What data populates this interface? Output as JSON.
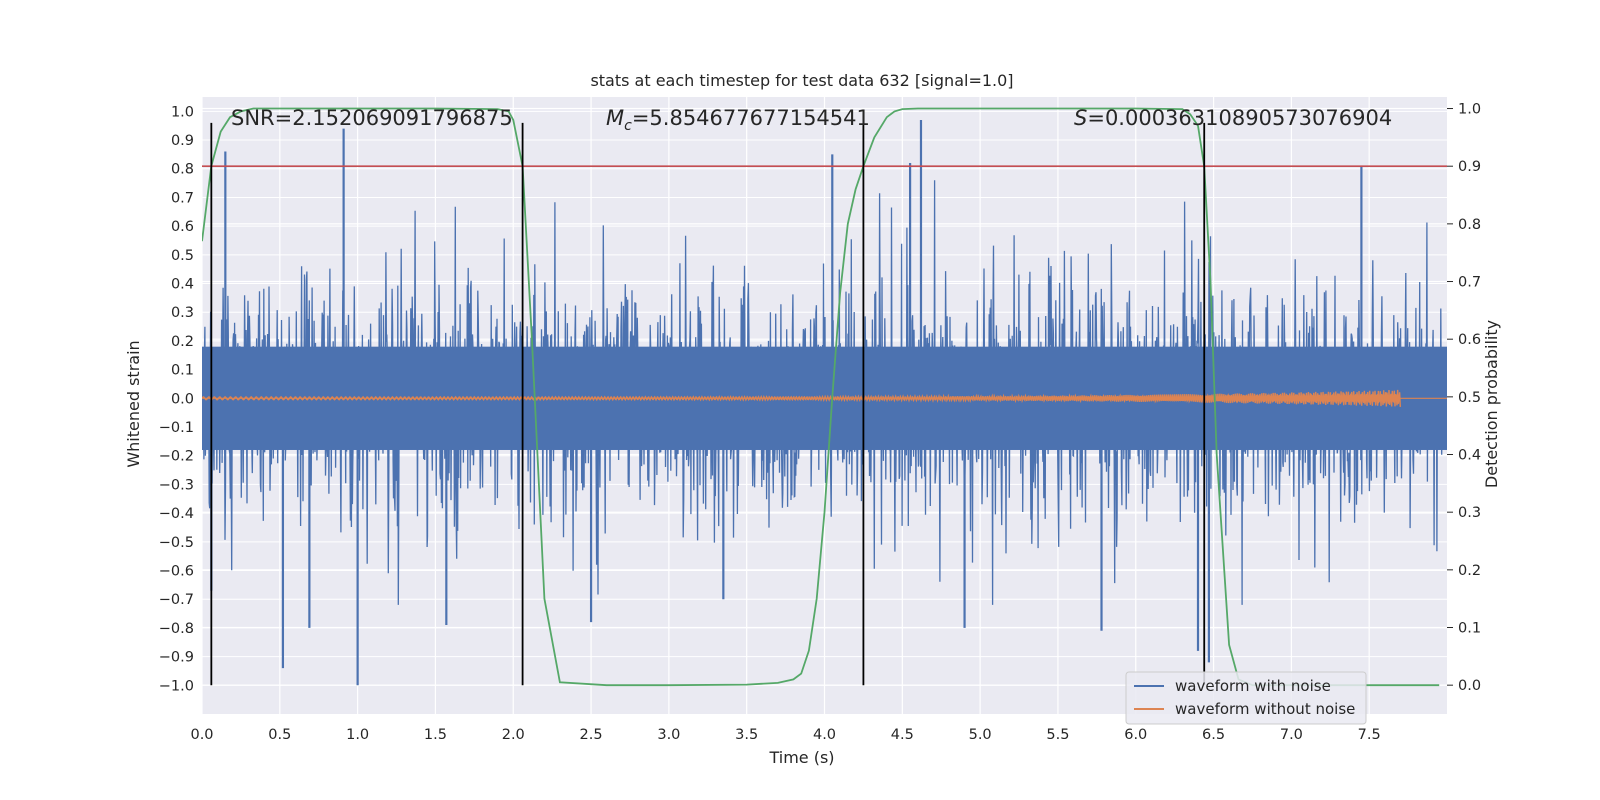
{
  "chart_data": {
    "type": "line",
    "title": "stats at each timestep for test data 632 [signal=1.0]",
    "xlabel": "Time (s)",
    "ylabel_left": "Whitened strain",
    "ylabel_right": "Detection probability",
    "xlim": [
      0,
      8.0
    ],
    "ylim_left": [
      -1.1,
      1.05
    ],
    "ylim_right": [
      -0.05,
      1.02
    ],
    "x_ticks": [
      0.0,
      0.5,
      1.0,
      1.5,
      2.0,
      2.5,
      3.0,
      3.5,
      4.0,
      4.5,
      5.0,
      5.5,
      6.0,
      6.5,
      7.0,
      7.5
    ],
    "x_tick_labels": [
      "0.0",
      "0.5",
      "1.0",
      "1.5",
      "2.0",
      "2.5",
      "3.0",
      "3.5",
      "4.0",
      "4.5",
      "5.0",
      "5.5",
      "6.0",
      "6.5",
      "7.0",
      "7.5"
    ],
    "y_left_ticks": [
      -1.0,
      -0.9,
      -0.8,
      -0.7,
      -0.6,
      -0.5,
      -0.4,
      -0.3,
      -0.2,
      -0.1,
      0.0,
      0.1,
      0.2,
      0.3,
      0.4,
      0.5,
      0.6,
      0.7,
      0.8,
      0.9,
      1.0
    ],
    "y_left_tick_labels": [
      "−1.0",
      "−0.9",
      "−0.8",
      "−0.7",
      "−0.6",
      "−0.5",
      "−0.4",
      "−0.3",
      "−0.2",
      "−0.1",
      "0.0",
      "0.1",
      "0.2",
      "0.3",
      "0.4",
      "0.5",
      "0.6",
      "0.7",
      "0.8",
      "0.9",
      "1.0"
    ],
    "y_right_ticks": [
      0.0,
      0.1,
      0.2,
      0.3,
      0.4,
      0.5,
      0.6,
      0.7,
      0.8,
      0.9,
      1.0
    ],
    "y_right_tick_labels": [
      "0.0",
      "0.1",
      "0.2",
      "0.3",
      "0.4",
      "0.5",
      "0.6",
      "0.7",
      "0.8",
      "0.9",
      "1.0"
    ],
    "threshold_right": 0.9,
    "vertical_lines_x": [
      0.06,
      2.06,
      4.25,
      6.44
    ],
    "series": [
      {
        "name": "waveform with noise",
        "color": "#4c72b0",
        "kind": "noisy-strain",
        "duration": 8.0,
        "core_amplitude": 0.18,
        "spikes": [
          {
            "x": 0.15,
            "y": 0.86
          },
          {
            "x": 0.91,
            "y": 0.94
          },
          {
            "x": 4.05,
            "y": 0.85
          },
          {
            "x": 4.62,
            "y": 0.97
          },
          {
            "x": 4.55,
            "y": 0.82
          },
          {
            "x": 7.45,
            "y": 0.81
          },
          {
            "x": 0.52,
            "y": -0.94
          },
          {
            "x": 1.0,
            "y": -1.0
          },
          {
            "x": 0.69,
            "y": -0.8
          },
          {
            "x": 1.57,
            "y": -0.79
          },
          {
            "x": 2.5,
            "y": -0.78
          },
          {
            "x": 4.9,
            "y": -0.8
          },
          {
            "x": 5.78,
            "y": -0.81
          },
          {
            "x": 6.47,
            "y": -0.92
          },
          {
            "x": 6.4,
            "y": -0.88
          },
          {
            "x": 0.06,
            "y": -0.67
          },
          {
            "x": 3.35,
            "y": -0.7
          }
        ]
      },
      {
        "name": "waveform without noise",
        "color": "#dd8452",
        "kind": "chirp",
        "t_start": 0.0,
        "t_end": 7.7,
        "base_amplitude": 0.005,
        "peak_amplitude": 0.03
      },
      {
        "name": "detection probability",
        "color": "#55a868",
        "axis": "right",
        "x": [
          0.0,
          0.06,
          0.12,
          0.18,
          0.25,
          0.33,
          0.5,
          1.0,
          1.5,
          1.9,
          1.97,
          2.0,
          2.06,
          2.12,
          2.2,
          2.3,
          2.6,
          3.0,
          3.5,
          3.7,
          3.8,
          3.85,
          3.9,
          3.95,
          4.0,
          4.05,
          4.1,
          4.15,
          4.2,
          4.25,
          4.32,
          4.4,
          4.45,
          4.5,
          4.6,
          5.0,
          5.5,
          6.0,
          6.3,
          6.35,
          6.4,
          6.44,
          6.48,
          6.52,
          6.6,
          6.66,
          6.75,
          7.0,
          7.5,
          7.95
        ],
        "y": [
          0.77,
          0.9,
          0.96,
          0.985,
          0.995,
          1.0,
          1.0,
          1.0,
          1.0,
          0.999,
          0.995,
          0.98,
          0.9,
          0.6,
          0.15,
          0.005,
          0.0,
          0.0,
          0.001,
          0.004,
          0.01,
          0.02,
          0.06,
          0.15,
          0.3,
          0.5,
          0.68,
          0.8,
          0.86,
          0.9,
          0.95,
          0.985,
          0.995,
          0.999,
          1.0,
          1.0,
          1.0,
          1.0,
          0.999,
          0.99,
          0.97,
          0.9,
          0.7,
          0.4,
          0.07,
          0.01,
          0.0,
          0.0,
          0.0,
          0.0
        ]
      }
    ],
    "annotations": [
      {
        "text": "SNR=2.152069091796875",
        "name": "snr"
      },
      {
        "text": "M_c=5.854677677154541",
        "name": "chirp-mass"
      },
      {
        "text": "S=0.00036310890573076904",
        "name": "significance"
      }
    ],
    "legend": {
      "location": "lower right",
      "entries": [
        {
          "label": "waveform with noise",
          "color": "#4c72b0"
        },
        {
          "label": "waveform without noise",
          "color": "#dd8452"
        }
      ]
    },
    "colors": {
      "background": "#eaeaf2",
      "grid": "#ffffff",
      "threshold": "#c44e52",
      "vertical_lines": "#000000"
    }
  },
  "annot_text": {
    "snr": "SNR=2.152069091796875",
    "mc_symbol": "M",
    "mc_sub": "c",
    "mc_value": "=5.854677677154541",
    "s_symbol": "S",
    "s_value": "=0.00036310890573076904"
  }
}
